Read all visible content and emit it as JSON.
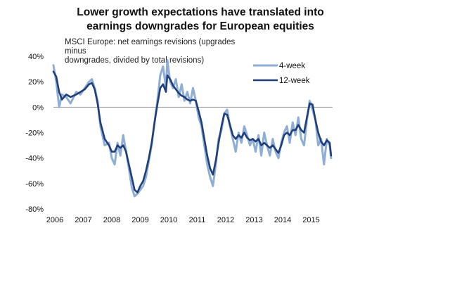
{
  "chart_data": {
    "type": "line",
    "title": "Lower growth expectations have translated into earnings downgrades for European equities",
    "title_lines": [
      "Lower growth expectations have translated into",
      "earnings downgrades for European equities"
    ],
    "subtitle_lines": [
      "MSCI Europe: net earnings revisions (upgrades minus",
      "downgrades, divided by total revisions)"
    ],
    "xlabel": "",
    "ylabel": "",
    "xlim": [
      2006,
      2016
    ],
    "ylim": [
      -80,
      40
    ],
    "y_ticks": [
      40,
      20,
      0,
      -20,
      -40,
      -60,
      -80
    ],
    "y_tick_labels": [
      "40%",
      "20%",
      "0%",
      "-20%",
      "-40%",
      "-60%",
      "-80%"
    ],
    "x_ticks": [
      2006,
      2007,
      2008,
      2009,
      2010,
      2011,
      2012,
      2013,
      2014,
      2015
    ],
    "x_tick_labels": [
      "2006",
      "2007",
      "2008",
      "2009",
      "2010",
      "2011",
      "2012",
      "2013",
      "2014",
      "2015"
    ],
    "legend_position": "top-right",
    "series": [
      {
        "name": "4-week",
        "color": "#8eaed6",
        "points": [
          [
            2006.0,
            33
          ],
          [
            2006.1,
            20
          ],
          [
            2006.2,
            0
          ],
          [
            2006.3,
            10
          ],
          [
            2006.45,
            8
          ],
          [
            2006.6,
            3
          ],
          [
            2006.8,
            12
          ],
          [
            2006.95,
            10
          ],
          [
            2007.1,
            15
          ],
          [
            2007.25,
            20
          ],
          [
            2007.35,
            22
          ],
          [
            2007.45,
            15
          ],
          [
            2007.55,
            5
          ],
          [
            2007.65,
            -15
          ],
          [
            2007.8,
            -30
          ],
          [
            2007.95,
            -28
          ],
          [
            2008.05,
            -40
          ],
          [
            2008.15,
            -45
          ],
          [
            2008.25,
            -28
          ],
          [
            2008.35,
            -38
          ],
          [
            2008.45,
            -22
          ],
          [
            2008.55,
            -35
          ],
          [
            2008.65,
            -48
          ],
          [
            2008.75,
            -63
          ],
          [
            2008.85,
            -70
          ],
          [
            2008.95,
            -68
          ],
          [
            2009.05,
            -65
          ],
          [
            2009.15,
            -62
          ],
          [
            2009.25,
            -55
          ],
          [
            2009.35,
            -42
          ],
          [
            2009.45,
            -30
          ],
          [
            2009.55,
            -12
          ],
          [
            2009.65,
            5
          ],
          [
            2009.75,
            25
          ],
          [
            2009.85,
            32
          ],
          [
            2009.95,
            15
          ],
          [
            2010.0,
            37
          ],
          [
            2010.1,
            20
          ],
          [
            2010.2,
            15
          ],
          [
            2010.3,
            22
          ],
          [
            2010.4,
            8
          ],
          [
            2010.5,
            18
          ],
          [
            2010.6,
            5
          ],
          [
            2010.7,
            12
          ],
          [
            2010.8,
            3
          ],
          [
            2010.9,
            15
          ],
          [
            2011.0,
            5
          ],
          [
            2011.1,
            -8
          ],
          [
            2011.2,
            -15
          ],
          [
            2011.3,
            -30
          ],
          [
            2011.4,
            -45
          ],
          [
            2011.5,
            -55
          ],
          [
            2011.6,
            -62
          ],
          [
            2011.7,
            -45
          ],
          [
            2011.8,
            -25
          ],
          [
            2011.9,
            -18
          ],
          [
            2012.0,
            -5
          ],
          [
            2012.1,
            -2
          ],
          [
            2012.2,
            -15
          ],
          [
            2012.3,
            -25
          ],
          [
            2012.4,
            -35
          ],
          [
            2012.5,
            -20
          ],
          [
            2012.6,
            -28
          ],
          [
            2012.7,
            -15
          ],
          [
            2012.8,
            -22
          ],
          [
            2012.9,
            -30
          ],
          [
            2013.0,
            -25
          ],
          [
            2013.1,
            -35
          ],
          [
            2013.2,
            -22
          ],
          [
            2013.3,
            -38
          ],
          [
            2013.4,
            -20
          ],
          [
            2013.5,
            -30
          ],
          [
            2013.6,
            -38
          ],
          [
            2013.7,
            -25
          ],
          [
            2013.8,
            -35
          ],
          [
            2013.9,
            -40
          ],
          [
            2014.0,
            -28
          ],
          [
            2014.1,
            -20
          ],
          [
            2014.2,
            -15
          ],
          [
            2014.3,
            -28
          ],
          [
            2014.4,
            -12
          ],
          [
            2014.5,
            -22
          ],
          [
            2014.6,
            -8
          ],
          [
            2014.7,
            -25
          ],
          [
            2014.8,
            -30
          ],
          [
            2014.9,
            -10
          ],
          [
            2015.0,
            5
          ],
          [
            2015.1,
            -2
          ],
          [
            2015.2,
            -10
          ],
          [
            2015.3,
            -30
          ],
          [
            2015.4,
            -25
          ],
          [
            2015.5,
            -45
          ],
          [
            2015.6,
            -25
          ],
          [
            2015.7,
            -30
          ],
          [
            2015.75,
            -40
          ]
        ]
      },
      {
        "name": "12-week",
        "color": "#1f3e7a",
        "points": [
          [
            2006.0,
            28
          ],
          [
            2006.1,
            24
          ],
          [
            2006.2,
            12
          ],
          [
            2006.3,
            6
          ],
          [
            2006.45,
            10
          ],
          [
            2006.6,
            8
          ],
          [
            2006.8,
            10
          ],
          [
            2006.95,
            12
          ],
          [
            2007.1,
            14
          ],
          [
            2007.25,
            18
          ],
          [
            2007.35,
            19
          ],
          [
            2007.45,
            14
          ],
          [
            2007.55,
            3
          ],
          [
            2007.65,
            -12
          ],
          [
            2007.8,
            -25
          ],
          [
            2007.95,
            -30
          ],
          [
            2008.05,
            -35
          ],
          [
            2008.15,
            -35
          ],
          [
            2008.25,
            -30
          ],
          [
            2008.35,
            -32
          ],
          [
            2008.45,
            -30
          ],
          [
            2008.55,
            -35
          ],
          [
            2008.65,
            -45
          ],
          [
            2008.75,
            -55
          ],
          [
            2008.85,
            -65
          ],
          [
            2008.95,
            -67
          ],
          [
            2009.05,
            -62
          ],
          [
            2009.15,
            -58
          ],
          [
            2009.25,
            -50
          ],
          [
            2009.35,
            -40
          ],
          [
            2009.45,
            -28
          ],
          [
            2009.55,
            -12
          ],
          [
            2009.65,
            2
          ],
          [
            2009.75,
            15
          ],
          [
            2009.85,
            18
          ],
          [
            2009.95,
            12
          ],
          [
            2010.0,
            25
          ],
          [
            2010.1,
            22
          ],
          [
            2010.2,
            17
          ],
          [
            2010.3,
            14
          ],
          [
            2010.4,
            11
          ],
          [
            2010.5,
            9
          ],
          [
            2010.6,
            8
          ],
          [
            2010.7,
            6
          ],
          [
            2010.8,
            5
          ],
          [
            2010.9,
            6
          ],
          [
            2011.0,
            5
          ],
          [
            2011.1,
            -3
          ],
          [
            2011.2,
            -12
          ],
          [
            2011.3,
            -25
          ],
          [
            2011.4,
            -38
          ],
          [
            2011.5,
            -48
          ],
          [
            2011.6,
            -53
          ],
          [
            2011.7,
            -42
          ],
          [
            2011.8,
            -28
          ],
          [
            2011.9,
            -15
          ],
          [
            2012.0,
            -5
          ],
          [
            2012.1,
            -6
          ],
          [
            2012.2,
            -14
          ],
          [
            2012.3,
            -22
          ],
          [
            2012.4,
            -25
          ],
          [
            2012.5,
            -22
          ],
          [
            2012.6,
            -24
          ],
          [
            2012.7,
            -20
          ],
          [
            2012.8,
            -24
          ],
          [
            2012.9,
            -26
          ],
          [
            2013.0,
            -25
          ],
          [
            2013.1,
            -27
          ],
          [
            2013.2,
            -25
          ],
          [
            2013.3,
            -30
          ],
          [
            2013.4,
            -28
          ],
          [
            2013.5,
            -30
          ],
          [
            2013.6,
            -32
          ],
          [
            2013.7,
            -30
          ],
          [
            2013.8,
            -33
          ],
          [
            2013.9,
            -36
          ],
          [
            2014.0,
            -30
          ],
          [
            2014.1,
            -22
          ],
          [
            2014.2,
            -20
          ],
          [
            2014.3,
            -22
          ],
          [
            2014.4,
            -18
          ],
          [
            2014.5,
            -18
          ],
          [
            2014.6,
            -14
          ],
          [
            2014.7,
            -18
          ],
          [
            2014.8,
            -20
          ],
          [
            2014.9,
            -8
          ],
          [
            2015.0,
            3
          ],
          [
            2015.1,
            2
          ],
          [
            2015.2,
            -10
          ],
          [
            2015.3,
            -20
          ],
          [
            2015.4,
            -27
          ],
          [
            2015.5,
            -30
          ],
          [
            2015.6,
            -26
          ],
          [
            2015.7,
            -28
          ],
          [
            2015.75,
            -38
          ]
        ]
      }
    ]
  }
}
